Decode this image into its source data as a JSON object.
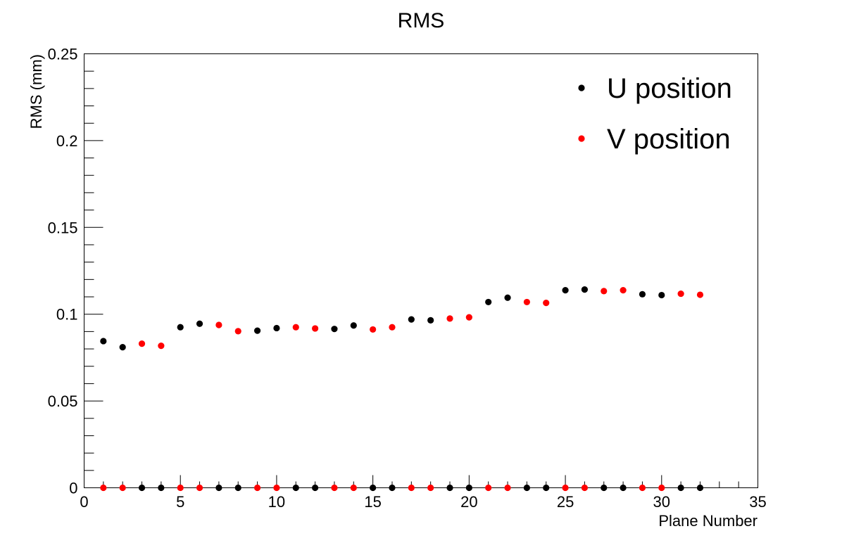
{
  "chart_data": {
    "type": "scatter",
    "title": "RMS",
    "xlabel": "Plane Number",
    "ylabel": "RMS (mm)",
    "xlim": [
      0,
      35
    ],
    "ylim": [
      0,
      0.25
    ],
    "xticks": [
      "0",
      "5",
      "10",
      "15",
      "20",
      "25",
      "30",
      "35"
    ],
    "yticks": [
      "0",
      "0.05",
      "0.1",
      "0.15",
      "0.2",
      "0.25"
    ],
    "grid": false,
    "legend_position": "top-right",
    "series": [
      {
        "name": "U position",
        "color": "#000000",
        "points": [
          [
            1,
            0.0845
          ],
          [
            2,
            0.081
          ],
          [
            3,
            0
          ],
          [
            4,
            0
          ],
          [
            5,
            0.0925
          ],
          [
            6,
            0.0945
          ],
          [
            7,
            0
          ],
          [
            8,
            0
          ],
          [
            9,
            0.0905
          ],
          [
            10,
            0.092
          ],
          [
            11,
            0
          ],
          [
            12,
            0
          ],
          [
            13,
            0.0915
          ],
          [
            14,
            0.0935
          ],
          [
            15,
            0
          ],
          [
            16,
            0
          ],
          [
            17,
            0.097
          ],
          [
            18,
            0.0965
          ],
          [
            19,
            0
          ],
          [
            20,
            0
          ],
          [
            21,
            0.107
          ],
          [
            22,
            0.1095
          ],
          [
            23,
            0
          ],
          [
            24,
            0
          ],
          [
            25,
            0.1138
          ],
          [
            26,
            0.1142
          ],
          [
            27,
            0
          ],
          [
            28,
            0
          ],
          [
            29,
            0.1115
          ],
          [
            30,
            0.111
          ],
          [
            31,
            0
          ],
          [
            32,
            0
          ]
        ]
      },
      {
        "name": "V position",
        "color": "#ff0000",
        "points": [
          [
            1,
            0
          ],
          [
            2,
            0
          ],
          [
            3,
            0.083
          ],
          [
            4,
            0.0818
          ],
          [
            5,
            0
          ],
          [
            6,
            0
          ],
          [
            7,
            0.0938
          ],
          [
            8,
            0.0902
          ],
          [
            9,
            0
          ],
          [
            10,
            0
          ],
          [
            11,
            0.0925
          ],
          [
            12,
            0.0918
          ],
          [
            13,
            0
          ],
          [
            14,
            0
          ],
          [
            15,
            0.0912
          ],
          [
            16,
            0.0925
          ],
          [
            17,
            0
          ],
          [
            18,
            0
          ],
          [
            19,
            0.0975
          ],
          [
            20,
            0.0982
          ],
          [
            21,
            0
          ],
          [
            22,
            0
          ],
          [
            23,
            0.107
          ],
          [
            24,
            0.1065
          ],
          [
            25,
            0
          ],
          [
            26,
            0
          ],
          [
            27,
            0.1133
          ],
          [
            28,
            0.1138
          ],
          [
            29,
            0
          ],
          [
            30,
            0
          ],
          [
            31,
            0.1118
          ],
          [
            32,
            0.1112
          ]
        ]
      }
    ]
  }
}
